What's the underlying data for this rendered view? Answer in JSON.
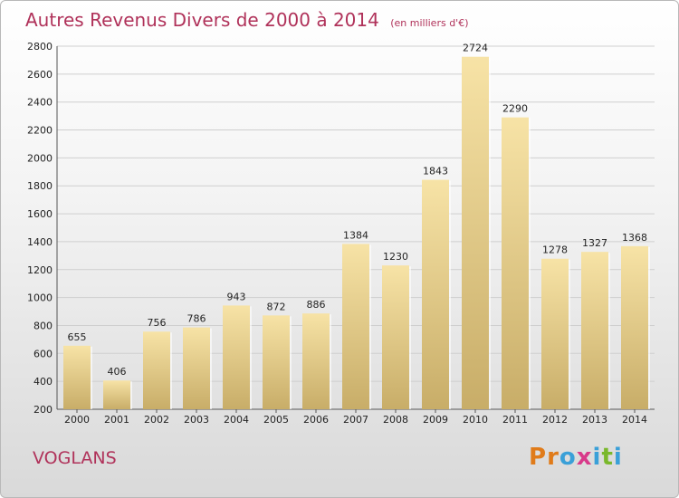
{
  "header": {
    "title": "Autres Revenus Divers de 2000 à 2014",
    "subtitle": "(en milliers d'€)"
  },
  "footer": {
    "place": "VOGLANS",
    "logo": [
      "P",
      "r",
      "o",
      "x",
      "i",
      "t",
      "i"
    ]
  },
  "colors": {
    "title": "#b0325a",
    "bar_light": "#f7e3a6",
    "bar_dark": "#c8ad68",
    "logo": [
      "#e07b1a",
      "#e07b1a",
      "#3aa0d8",
      "#d83a8a",
      "#3aa0d8",
      "#7ab82c",
      "#3aa0d8"
    ]
  },
  "chart_data": {
    "type": "bar",
    "title": "Autres Revenus Divers de 2000 à 2014",
    "subtitle": "(en milliers d'€)",
    "categories": [
      "2000",
      "2001",
      "2002",
      "2003",
      "2004",
      "2005",
      "2006",
      "2007",
      "2008",
      "2009",
      "2010",
      "2011",
      "2012",
      "2013",
      "2014"
    ],
    "values": [
      655,
      406,
      756,
      786,
      943,
      872,
      886,
      1384,
      1230,
      1843,
      2724,
      2290,
      1278,
      1327,
      1368
    ],
    "ylim": [
      200,
      2800
    ],
    "yticks": [
      200,
      400,
      600,
      800,
      1000,
      1200,
      1400,
      1600,
      1800,
      2000,
      2200,
      2400,
      2600,
      2800
    ],
    "grid": true,
    "xlabel": "",
    "ylabel": ""
  }
}
